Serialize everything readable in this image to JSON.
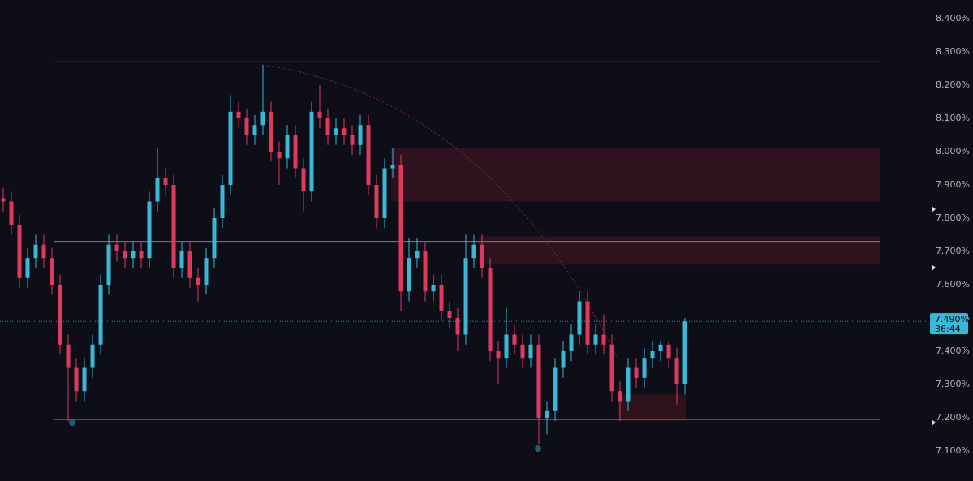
{
  "chart_data": {
    "type": "candlestick",
    "ylim": [
      7.06,
      8.46
    ],
    "yticks": [
      {
        "value": 7.1,
        "label": "7.100%"
      },
      {
        "value": 7.2,
        "label": "7.200%"
      },
      {
        "value": 7.3,
        "label": "7.300%"
      },
      {
        "value": 7.4,
        "label": "7.400%"
      },
      {
        "value": 7.5,
        "label": "7.500%"
      },
      {
        "value": 7.6,
        "label": "7.600%"
      },
      {
        "value": 7.7,
        "label": "7.700%"
      },
      {
        "value": 7.8,
        "label": "7.800%"
      },
      {
        "value": 7.9,
        "label": "7.900%"
      },
      {
        "value": 8.0,
        "label": "8.000%"
      },
      {
        "value": 8.1,
        "label": "8.100%"
      },
      {
        "value": 8.2,
        "label": "8.200%"
      },
      {
        "value": 8.3,
        "label": "8.300%"
      },
      {
        "value": 8.4,
        "label": "8.400%"
      }
    ],
    "up_color": "#3bb8d6",
    "down_color": "#e0395e",
    "open": [
      7.86,
      7.85,
      7.78,
      7.62,
      7.68,
      7.72,
      7.68,
      7.6,
      7.42,
      7.35,
      7.28,
      7.35,
      7.42,
      7.6,
      7.72,
      7.7,
      7.68,
      7.7,
      7.68,
      7.85,
      7.92,
      7.9,
      7.65,
      7.7,
      7.62,
      7.6,
      7.68,
      7.8,
      7.9,
      8.12,
      8.1,
      8.05,
      8.08,
      8.12,
      8.0,
      7.98,
      8.05,
      7.95,
      7.88,
      8.12,
      8.1,
      8.05,
      8.07,
      8.05,
      8.02,
      8.08,
      7.9,
      7.8,
      7.95,
      7.96,
      7.58,
      7.68,
      7.7,
      7.58,
      7.6,
      7.52,
      7.5,
      7.45,
      7.68,
      7.72,
      7.65,
      7.4,
      7.38,
      7.45,
      7.42,
      7.38,
      7.42,
      7.2,
      7.22,
      7.35,
      7.4,
      7.45,
      7.55,
      7.42,
      7.45,
      7.42,
      7.28,
      7.25,
      7.35,
      7.32,
      7.38,
      7.4,
      7.42,
      7.38,
      7.3
    ],
    "high": [
      7.89,
      7.88,
      7.81,
      7.71,
      7.75,
      7.75,
      7.71,
      7.63,
      7.45,
      7.38,
      7.38,
      7.45,
      7.63,
      7.75,
      7.75,
      7.73,
      7.73,
      7.73,
      7.88,
      8.01,
      7.95,
      7.93,
      7.73,
      7.73,
      7.65,
      7.71,
      7.83,
      7.93,
      8.17,
      8.15,
      8.13,
      8.11,
      8.26,
      8.15,
      8.03,
      8.08,
      8.08,
      7.98,
      8.15,
      8.2,
      8.13,
      8.1,
      8.1,
      8.08,
      8.11,
      8.11,
      7.93,
      7.98,
      8.01,
      7.99,
      7.74,
      7.74,
      7.73,
      7.63,
      7.63,
      7.55,
      7.53,
      7.75,
      7.75,
      7.75,
      7.68,
      7.43,
      7.53,
      7.48,
      7.45,
      7.45,
      7.45,
      7.25,
      7.38,
      7.43,
      7.48,
      7.58,
      7.58,
      7.48,
      7.51,
      7.45,
      7.31,
      7.38,
      7.38,
      7.41,
      7.43,
      7.43,
      7.43,
      7.41,
      7.5
    ],
    "low": [
      7.82,
      7.75,
      7.59,
      7.59,
      7.65,
      7.65,
      7.57,
      7.39,
      7.19,
      7.25,
      7.25,
      7.32,
      7.39,
      7.57,
      7.67,
      7.65,
      7.65,
      7.65,
      7.65,
      7.82,
      7.87,
      7.62,
      7.62,
      7.59,
      7.55,
      7.57,
      7.65,
      7.77,
      7.87,
      8.07,
      8.02,
      8.02,
      8.05,
      7.97,
      7.9,
      7.95,
      7.92,
      7.82,
      7.85,
      8.07,
      8.02,
      8.02,
      8.02,
      7.99,
      7.99,
      7.87,
      7.77,
      7.77,
      7.92,
      7.52,
      7.55,
      7.65,
      7.55,
      7.55,
      7.49,
      7.47,
      7.4,
      7.42,
      7.65,
      7.62,
      7.37,
      7.3,
      7.35,
      7.39,
      7.35,
      7.35,
      7.12,
      7.15,
      7.19,
      7.32,
      7.37,
      7.42,
      7.39,
      7.39,
      7.39,
      7.25,
      7.19,
      7.22,
      7.29,
      7.29,
      7.35,
      7.37,
      7.35,
      7.24,
      7.27
    ],
    "close": [
      7.85,
      7.78,
      7.62,
      7.68,
      7.72,
      7.68,
      7.6,
      7.42,
      7.35,
      7.28,
      7.35,
      7.42,
      7.6,
      7.72,
      7.7,
      7.68,
      7.7,
      7.68,
      7.85,
      7.92,
      7.9,
      7.65,
      7.7,
      7.62,
      7.6,
      7.68,
      7.8,
      7.9,
      8.12,
      8.1,
      8.05,
      8.08,
      8.12,
      8.0,
      7.98,
      8.05,
      7.95,
      7.88,
      8.12,
      8.1,
      8.05,
      8.07,
      8.05,
      8.02,
      8.08,
      7.9,
      7.8,
      7.95,
      7.96,
      7.58,
      7.68,
      7.7,
      7.58,
      7.6,
      7.52,
      7.5,
      7.45,
      7.68,
      7.72,
      7.65,
      7.4,
      7.38,
      7.45,
      7.42,
      7.38,
      7.42,
      7.2,
      7.22,
      7.35,
      7.4,
      7.45,
      7.55,
      7.42,
      7.45,
      7.42,
      7.28,
      7.25,
      7.35,
      7.32,
      7.38,
      7.4,
      7.42,
      7.38,
      7.3,
      7.49
    ],
    "levels": [
      8.27,
      7.73,
      7.195
    ],
    "zones": [
      {
        "top": 8.01,
        "bottom": 7.85
      },
      {
        "top": 7.745,
        "bottom": 7.66
      },
      {
        "top": 7.27,
        "bottom": 7.19
      }
    ],
    "last_price": {
      "value": 7.49,
      "label": "7.490%",
      "countdown": "36:44"
    }
  }
}
